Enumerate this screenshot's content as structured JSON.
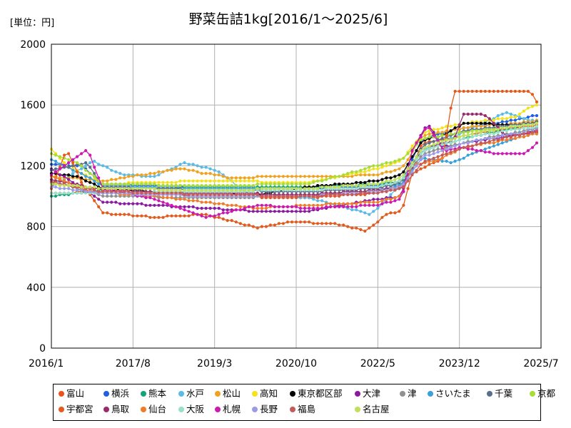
{
  "chart_data": {
    "type": "line",
    "title": "野菜缶詰1kg[2016/1～2025/6]",
    "unit_label": "[単位：円]",
    "ylim": [
      0,
      2000
    ],
    "yticks": [
      0,
      400,
      800,
      1200,
      1600,
      2000
    ],
    "x_range": [
      2016.0,
      2025.5
    ],
    "xtick_labels": [
      "2016/1",
      "2017/8",
      "2019/3",
      "2020/10",
      "2022/5",
      "2023/12",
      "2025/7"
    ],
    "grid": true,
    "legend_position": "bottom",
    "series": [
      {
        "name": "富山",
        "color": "#e8541e",
        "anchors": [
          [
            2016.0,
            1020
          ],
          [
            2017.0,
            1030
          ],
          [
            2019.0,
            1000
          ],
          [
            2021.0,
            990
          ],
          [
            2022.3,
            1020
          ],
          [
            2022.8,
            1050
          ],
          [
            2023.2,
            1350
          ],
          [
            2024.0,
            1400
          ],
          [
            2025.0,
            1450
          ],
          [
            2025.5,
            1470
          ]
        ]
      },
      {
        "name": "横浜",
        "color": "#1f5fe0",
        "anchors": [
          [
            2016.0,
            1210
          ],
          [
            2016.6,
            1200
          ],
          [
            2017.0,
            1080
          ],
          [
            2019.0,
            1060
          ],
          [
            2021.0,
            1050
          ],
          [
            2022.3,
            1070
          ],
          [
            2022.8,
            1100
          ],
          [
            2023.2,
            1380
          ],
          [
            2024.0,
            1450
          ],
          [
            2025.0,
            1500
          ],
          [
            2025.5,
            1540
          ]
        ]
      },
      {
        "name": "熊本",
        "color": "#17a37a",
        "anchors": [
          [
            2016.0,
            1000
          ],
          [
            2017.0,
            1040
          ],
          [
            2019.0,
            1060
          ],
          [
            2021.0,
            1060
          ],
          [
            2022.3,
            1080
          ],
          [
            2022.8,
            1100
          ],
          [
            2023.2,
            1300
          ],
          [
            2024.0,
            1380
          ],
          [
            2025.0,
            1450
          ],
          [
            2025.5,
            1500
          ]
        ]
      },
      {
        "name": "水戸",
        "color": "#5bbbe6",
        "anchors": [
          [
            2016.0,
            1060
          ],
          [
            2016.8,
            1230
          ],
          [
            2017.4,
            1140
          ],
          [
            2018.0,
            1130
          ],
          [
            2018.6,
            1220
          ],
          [
            2019.2,
            1170
          ],
          [
            2019.8,
            1020
          ],
          [
            2021.0,
            990
          ],
          [
            2022.2,
            880
          ],
          [
            2022.8,
            1080
          ],
          [
            2023.2,
            1300
          ],
          [
            2024.0,
            1420
          ],
          [
            2024.8,
            1550
          ],
          [
            2025.5,
            1480
          ]
        ]
      },
      {
        "name": "松山",
        "color": "#f0a21e",
        "anchors": [
          [
            2016.0,
            1130
          ],
          [
            2017.0,
            1100
          ],
          [
            2018.5,
            1180
          ],
          [
            2019.5,
            1120
          ],
          [
            2020.5,
            1130
          ],
          [
            2021.5,
            1130
          ],
          [
            2022.3,
            1140
          ],
          [
            2022.8,
            1180
          ],
          [
            2023.2,
            1400
          ],
          [
            2024.0,
            1450
          ],
          [
            2025.0,
            1480
          ],
          [
            2025.5,
            1500
          ]
        ]
      },
      {
        "name": "高知",
        "color": "#f4e21a",
        "anchors": [
          [
            2016.0,
            1310
          ],
          [
            2016.3,
            1200
          ],
          [
            2017.0,
            1080
          ],
          [
            2019.0,
            1100
          ],
          [
            2021.0,
            1090
          ],
          [
            2022.3,
            1180
          ],
          [
            2022.8,
            1230
          ],
          [
            2023.2,
            1420
          ],
          [
            2024.0,
            1480
          ],
          [
            2025.0,
            1520
          ],
          [
            2025.4,
            1610
          ],
          [
            2025.5,
            1560
          ]
        ]
      },
      {
        "name": "東京都区部",
        "color": "#000000",
        "anchors": [
          [
            2016.0,
            1150
          ],
          [
            2016.5,
            1130
          ],
          [
            2017.0,
            1050
          ],
          [
            2018.0,
            1030
          ],
          [
            2019.0,
            1020
          ],
          [
            2020.0,
            1010
          ],
          [
            2021.0,
            1060
          ],
          [
            2022.0,
            1090
          ],
          [
            2022.3,
            1100
          ],
          [
            2022.8,
            1140
          ],
          [
            2023.2,
            1370
          ],
          [
            2023.6,
            1400
          ],
          [
            2024.0,
            1480
          ],
          [
            2025.0,
            1470
          ],
          [
            2025.5,
            1490
          ]
        ]
      },
      {
        "name": "大津",
        "color": "#8a1aa0",
        "anchors": [
          [
            2016.0,
            1180
          ],
          [
            2017.0,
            960
          ],
          [
            2018.0,
            940
          ],
          [
            2019.0,
            920
          ],
          [
            2020.0,
            900
          ],
          [
            2021.0,
            900
          ],
          [
            2022.3,
            980
          ],
          [
            2022.8,
            1000
          ],
          [
            2023.0,
            1300
          ],
          [
            2023.3,
            1480
          ],
          [
            2023.6,
            1320
          ],
          [
            2024.0,
            1350
          ],
          [
            2025.0,
            1400
          ],
          [
            2025.5,
            1440
          ]
        ]
      },
      {
        "name": "津",
        "color": "#909090",
        "anchors": [
          [
            2016.0,
            1100
          ],
          [
            2017.0,
            1000
          ],
          [
            2019.0,
            990
          ],
          [
            2021.0,
            1000
          ],
          [
            2022.3,
            1040
          ],
          [
            2022.8,
            1070
          ],
          [
            2023.2,
            1280
          ],
          [
            2024.0,
            1350
          ],
          [
            2025.0,
            1420
          ],
          [
            2025.5,
            1450
          ]
        ]
      },
      {
        "name": "さいたま",
        "color": "#3aa0d8",
        "anchors": [
          [
            2016.0,
            1240
          ],
          [
            2016.5,
            1160
          ],
          [
            2017.0,
            1070
          ],
          [
            2019.0,
            1050
          ],
          [
            2021.0,
            1040
          ],
          [
            2022.3,
            1060
          ],
          [
            2022.8,
            1080
          ],
          [
            2023.2,
            1250
          ],
          [
            2023.8,
            1220
          ],
          [
            2024.3,
            1300
          ],
          [
            2025.0,
            1380
          ],
          [
            2025.5,
            1420
          ]
        ]
      },
      {
        "name": "千葉",
        "color": "#5a6e8a",
        "anchors": [
          [
            2016.0,
            1170
          ],
          [
            2016.7,
            1220
          ],
          [
            2017.0,
            1060
          ],
          [
            2019.0,
            1040
          ],
          [
            2021.0,
            1030
          ],
          [
            2022.3,
            1050
          ],
          [
            2022.8,
            1090
          ],
          [
            2023.2,
            1330
          ],
          [
            2024.0,
            1430
          ],
          [
            2025.0,
            1470
          ],
          [
            2025.5,
            1490
          ]
        ]
      },
      {
        "name": "京都",
        "color": "#a8dc3a",
        "anchors": [
          [
            2016.0,
            1280
          ],
          [
            2016.5,
            1220
          ],
          [
            2017.0,
            1080
          ],
          [
            2019.0,
            1070
          ],
          [
            2021.0,
            1080
          ],
          [
            2022.3,
            1200
          ],
          [
            2022.8,
            1240
          ],
          [
            2023.2,
            1380
          ],
          [
            2024.0,
            1420
          ],
          [
            2025.0,
            1460
          ],
          [
            2025.5,
            1480
          ]
        ]
      },
      {
        "name": "宇都宮",
        "color": "#e25a1c",
        "anchors": [
          [
            2016.0,
            1050
          ],
          [
            2016.3,
            1310
          ],
          [
            2016.6,
            1080
          ],
          [
            2017.0,
            890
          ],
          [
            2018.0,
            860
          ],
          [
            2019.0,
            880
          ],
          [
            2020.0,
            790
          ],
          [
            2020.6,
            830
          ],
          [
            2021.5,
            820
          ],
          [
            2022.1,
            770
          ],
          [
            2022.5,
            880
          ],
          [
            2022.8,
            900
          ],
          [
            2023.0,
            1150
          ],
          [
            2023.6,
            1250
          ],
          [
            2023.8,
            1690
          ],
          [
            2024.5,
            1690
          ],
          [
            2025.3,
            1690
          ],
          [
            2025.5,
            1570
          ]
        ]
      },
      {
        "name": "鳥取",
        "color": "#9a2a6a",
        "anchors": [
          [
            2016.0,
            1110
          ],
          [
            2017.0,
            1040
          ],
          [
            2019.0,
            1020
          ],
          [
            2021.0,
            1010
          ],
          [
            2022.3,
            1040
          ],
          [
            2022.8,
            1060
          ],
          [
            2023.2,
            1320
          ],
          [
            2023.8,
            1360
          ],
          [
            2024.0,
            1540
          ],
          [
            2024.4,
            1540
          ],
          [
            2024.8,
            1400
          ],
          [
            2025.5,
            1420
          ]
        ]
      },
      {
        "name": "仙台",
        "color": "#ee7c2a",
        "anchors": [
          [
            2016.0,
            1130
          ],
          [
            2016.6,
            1050
          ],
          [
            2017.0,
            1020
          ],
          [
            2018.0,
            1000
          ],
          [
            2019.0,
            960
          ],
          [
            2020.0,
            920
          ],
          [
            2021.0,
            940
          ],
          [
            2022.3,
            960
          ],
          [
            2022.8,
            1000
          ],
          [
            2023.0,
            1200
          ],
          [
            2023.5,
            1240
          ],
          [
            2024.0,
            1320
          ],
          [
            2025.0,
            1380
          ],
          [
            2025.5,
            1420
          ]
        ]
      },
      {
        "name": "大阪",
        "color": "#98e0c8",
        "anchors": [
          [
            2016.0,
            1020
          ],
          [
            2017.0,
            1020
          ],
          [
            2019.0,
            1030
          ],
          [
            2021.0,
            1040
          ],
          [
            2022.3,
            1060
          ],
          [
            2022.8,
            1100
          ],
          [
            2023.2,
            1300
          ],
          [
            2024.0,
            1380
          ],
          [
            2025.0,
            1440
          ],
          [
            2025.5,
            1460
          ]
        ]
      },
      {
        "name": "札幌",
        "color": "#cc1ab0",
        "anchors": [
          [
            2016.0,
            1140
          ],
          [
            2016.7,
            1310
          ],
          [
            2017.0,
            1050
          ],
          [
            2018.0,
            980
          ],
          [
            2019.0,
            860
          ],
          [
            2020.0,
            940
          ],
          [
            2021.0,
            920
          ],
          [
            2022.3,
            940
          ],
          [
            2022.8,
            980
          ],
          [
            2023.0,
            1300
          ],
          [
            2023.3,
            1470
          ],
          [
            2023.6,
            1300
          ],
          [
            2024.0,
            1320
          ],
          [
            2024.6,
            1280
          ],
          [
            2025.2,
            1280
          ],
          [
            2025.5,
            1380
          ]
        ]
      },
      {
        "name": "長野",
        "color": "#9b9be8",
        "anchors": [
          [
            2016.0,
            1060
          ],
          [
            2017.0,
            1020
          ],
          [
            2019.0,
            1000
          ],
          [
            2021.0,
            1000
          ],
          [
            2022.3,
            1030
          ],
          [
            2022.8,
            1060
          ],
          [
            2023.2,
            1260
          ],
          [
            2024.0,
            1350
          ],
          [
            2025.0,
            1410
          ],
          [
            2025.5,
            1440
          ]
        ]
      },
      {
        "name": "福島",
        "color": "#c45a5a",
        "anchors": [
          [
            2016.0,
            1090
          ],
          [
            2017.0,
            1030
          ],
          [
            2019.0,
            1010
          ],
          [
            2021.0,
            1000
          ],
          [
            2022.3,
            1020
          ],
          [
            2022.8,
            1050
          ],
          [
            2023.2,
            1220
          ],
          [
            2024.0,
            1320
          ],
          [
            2025.0,
            1400
          ],
          [
            2025.5,
            1430
          ]
        ]
      },
      {
        "name": "名古屋",
        "color": "#c0e05a",
        "anchors": [
          [
            2016.0,
            1080
          ],
          [
            2017.0,
            1050
          ],
          [
            2019.0,
            1040
          ],
          [
            2021.0,
            1050
          ],
          [
            2022.3,
            1080
          ],
          [
            2022.8,
            1120
          ],
          [
            2023.2,
            1320
          ],
          [
            2024.0,
            1400
          ],
          [
            2025.0,
            1460
          ],
          [
            2025.5,
            1480
          ]
        ]
      }
    ]
  }
}
